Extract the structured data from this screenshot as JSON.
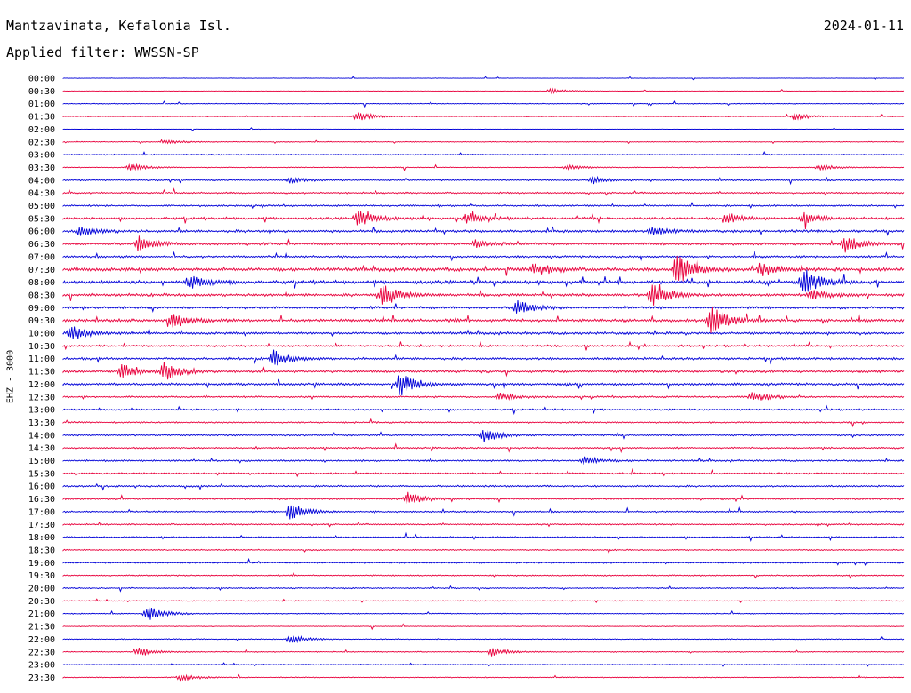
{
  "header": {
    "station": "Mantzavinata, Kefalonia Isl.",
    "filter": "Applied filter: WWSSN-SP",
    "date": "2024-01-11"
  },
  "chart_data": {
    "type": "line",
    "title": "Mantzavinata, Kefalonia Isl.",
    "subtitle": "Applied filter: WWSSN-SP",
    "ylabel": "EHZ - 3000",
    "date": "2024-01-11",
    "colors": {
      "blue": "#0000d8",
      "red": "#e8003c"
    },
    "row_interval_minutes": 30,
    "rows": [
      "00:00",
      "00:30",
      "01:00",
      "01:30",
      "02:00",
      "02:30",
      "03:00",
      "03:30",
      "04:00",
      "04:30",
      "05:00",
      "05:30",
      "06:00",
      "06:30",
      "07:00",
      "07:30",
      "08:00",
      "08:30",
      "09:00",
      "09:30",
      "10:00",
      "10:30",
      "11:00",
      "11:30",
      "12:00",
      "12:30",
      "13:00",
      "13:30",
      "14:00",
      "14:30",
      "15:00",
      "15:30",
      "16:00",
      "16:30",
      "17:00",
      "17:30",
      "18:00",
      "18:30",
      "19:00",
      "19:30",
      "20:00",
      "20:30",
      "21:00",
      "21:30",
      "22:00",
      "22:30",
      "23:00",
      "23:30"
    ],
    "activity": [
      0.3,
      0.2,
      0.5,
      0.5,
      0.2,
      0.5,
      0.7,
      0.6,
      0.9,
      1.0,
      1.1,
      1.6,
      1.6,
      1.6,
      1.3,
      2.2,
      2.2,
      1.8,
      1.6,
      1.8,
      1.6,
      1.3,
      1.5,
      1.6,
      1.5,
      1.1,
      1.1,
      1.0,
      1.1,
      1.0,
      1.1,
      1.1,
      1.1,
      1.1,
      1.0,
      0.9,
      0.9,
      0.8,
      0.9,
      0.8,
      0.8,
      0.6,
      0.6,
      0.5,
      0.6,
      0.6,
      0.6,
      0.6
    ],
    "events": [
      {
        "row": "00:30",
        "t": 0.58,
        "a": 3
      },
      {
        "row": "01:30",
        "t": 0.35,
        "a": 6
      },
      {
        "row": "01:30",
        "t": 0.87,
        "a": 4
      },
      {
        "row": "02:30",
        "t": 0.12,
        "a": 3
      },
      {
        "row": "03:30",
        "t": 0.08,
        "a": 4
      },
      {
        "row": "03:30",
        "t": 0.6,
        "a": 3
      },
      {
        "row": "03:30",
        "t": 0.9,
        "a": 4
      },
      {
        "row": "04:00",
        "t": 0.27,
        "a": 3
      },
      {
        "row": "04:00",
        "t": 0.63,
        "a": 4
      },
      {
        "row": "05:30",
        "t": 0.35,
        "a": 9
      },
      {
        "row": "05:30",
        "t": 0.48,
        "a": 6
      },
      {
        "row": "05:30",
        "t": 0.79,
        "a": 6
      },
      {
        "row": "05:30",
        "t": 0.88,
        "a": 7
      },
      {
        "row": "06:00",
        "t": 0.02,
        "a": 6
      },
      {
        "row": "06:00",
        "t": 0.7,
        "a": 5
      },
      {
        "row": "06:30",
        "t": 0.09,
        "a": 9
      },
      {
        "row": "06:30",
        "t": 0.49,
        "a": 5
      },
      {
        "row": "06:30",
        "t": 0.93,
        "a": 9
      },
      {
        "row": "07:30",
        "t": 0.56,
        "a": 7
      },
      {
        "row": "07:30",
        "t": 0.73,
        "a": 20
      },
      {
        "row": "07:30",
        "t": 0.83,
        "a": 8
      },
      {
        "row": "08:00",
        "t": 0.15,
        "a": 8
      },
      {
        "row": "08:00",
        "t": 0.88,
        "a": 16
      },
      {
        "row": "08:30",
        "t": 0.38,
        "a": 14
      },
      {
        "row": "08:30",
        "t": 0.7,
        "a": 14
      },
      {
        "row": "08:30",
        "t": 0.89,
        "a": 6
      },
      {
        "row": "09:00",
        "t": 0.54,
        "a": 8
      },
      {
        "row": "09:30",
        "t": 0.13,
        "a": 8
      },
      {
        "row": "09:30",
        "t": 0.77,
        "a": 18
      },
      {
        "row": "10:00",
        "t": 0.01,
        "a": 9
      },
      {
        "row": "11:00",
        "t": 0.25,
        "a": 9
      },
      {
        "row": "11:30",
        "t": 0.07,
        "a": 8
      },
      {
        "row": "11:30",
        "t": 0.12,
        "a": 10
      },
      {
        "row": "12:00",
        "t": 0.4,
        "a": 14
      },
      {
        "row": "12:30",
        "t": 0.52,
        "a": 5
      },
      {
        "row": "12:30",
        "t": 0.82,
        "a": 6
      },
      {
        "row": "14:00",
        "t": 0.5,
        "a": 9
      },
      {
        "row": "15:00",
        "t": 0.62,
        "a": 5
      },
      {
        "row": "16:30",
        "t": 0.41,
        "a": 7
      },
      {
        "row": "17:00",
        "t": 0.27,
        "a": 10
      },
      {
        "row": "21:00",
        "t": 0.1,
        "a": 9
      },
      {
        "row": "22:00",
        "t": 0.27,
        "a": 5
      },
      {
        "row": "22:30",
        "t": 0.09,
        "a": 5
      },
      {
        "row": "22:30",
        "t": 0.51,
        "a": 5
      },
      {
        "row": "23:30",
        "t": 0.14,
        "a": 4
      }
    ]
  }
}
